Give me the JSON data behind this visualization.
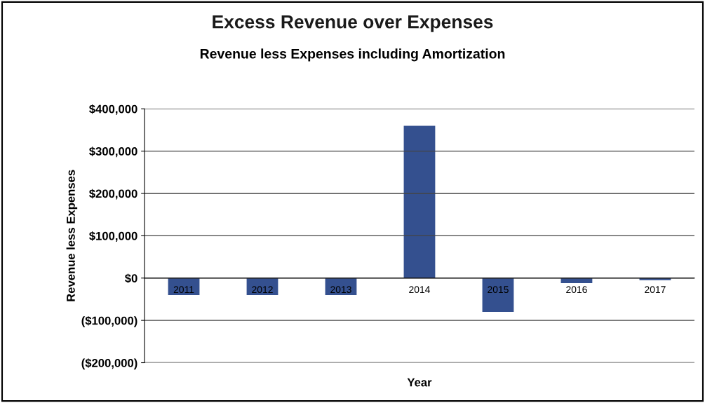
{
  "chart_data": {
    "type": "bar",
    "title": "Excess Revenue over Expenses",
    "subtitle": "Revenue less Expenses including Amortization",
    "xlabel": "Year",
    "ylabel": "Revenue less Expenses",
    "categories": [
      "2011",
      "2012",
      "2013",
      "2014",
      "2015",
      "2016",
      "2017"
    ],
    "values": [
      -40000,
      -40000,
      -40000,
      360000,
      -80000,
      -12000,
      -5000
    ],
    "color": "#34508f",
    "ylim": [
      -200000,
      400000
    ],
    "yticks": [
      {
        "value": -200000,
        "label": "($200,000)"
      },
      {
        "value": -100000,
        "label": "($100,000)"
      },
      {
        "value": 0,
        "label": "$0"
      },
      {
        "value": 100000,
        "label": "$100,000"
      },
      {
        "value": 200000,
        "label": "$200,000"
      },
      {
        "value": 300000,
        "label": "$300,000"
      },
      {
        "value": 400000,
        "label": "$400,000"
      }
    ],
    "grid": "y",
    "legend": false
  }
}
